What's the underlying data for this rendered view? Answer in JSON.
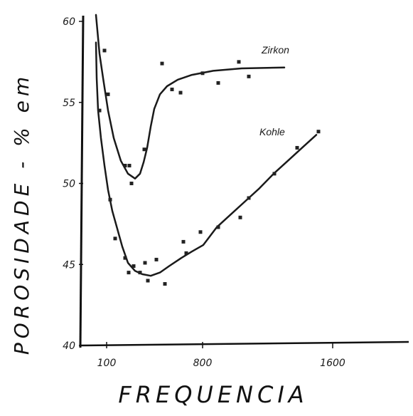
{
  "chart_data": {
    "type": "line",
    "title": "",
    "xlabel": "FREQUENCIA",
    "ylabel": "POROSIDADE - % em",
    "x_ticks": [
      "100",
      "800",
      "1600"
    ],
    "y_ticks": [
      "40",
      "45",
      "50",
      "55",
      "60"
    ],
    "ylim": [
      40,
      60
    ],
    "legend": "none",
    "grid": false,
    "series": [
      {
        "name": "Zirkon",
        "color": "#1a1a1a",
        "curve": [
          [
            135,
            60.4
          ],
          [
            140,
            58
          ],
          [
            145,
            56.5
          ],
          [
            152,
            54.5
          ],
          [
            160,
            52.8
          ],
          [
            170,
            51.4
          ],
          [
            180,
            50.6
          ],
          [
            190,
            50.3
          ],
          [
            197,
            50.6
          ],
          [
            202,
            51.3
          ],
          [
            207,
            52.2
          ],
          [
            212,
            53.5
          ],
          [
            217,
            54.6
          ],
          [
            225,
            55.5
          ],
          [
            235,
            56.0
          ],
          [
            250,
            56.4
          ],
          [
            270,
            56.7
          ],
          [
            300,
            56.95
          ],
          [
            340,
            57.1
          ],
          [
            400,
            57.15
          ]
        ],
        "points": [
          [
            147,
            58.2
          ],
          [
            152,
            55.5
          ],
          [
            176,
            51.1
          ],
          [
            182,
            51.1
          ],
          [
            185,
            50.0
          ],
          [
            203,
            52.1
          ],
          [
            228,
            57.4
          ],
          [
            242,
            55.8
          ],
          [
            254,
            55.6
          ],
          [
            285,
            56.8
          ],
          [
            307,
            56.2
          ],
          [
            336,
            57.5
          ],
          [
            350,
            56.6
          ]
        ]
      },
      {
        "name": "Kohle",
        "color": "#1a1a1a",
        "curve": [
          [
            135,
            58.7
          ],
          [
            136,
            56.5
          ],
          [
            138,
            54.5
          ],
          [
            142,
            52.8
          ],
          [
            147,
            51.1
          ],
          [
            152,
            49.6
          ],
          [
            158,
            48.3
          ],
          [
            165,
            47.2
          ],
          [
            172,
            46.1
          ],
          [
            180,
            45.1
          ],
          [
            190,
            44.6
          ],
          [
            200,
            44.4
          ],
          [
            212,
            44.3
          ],
          [
            225,
            44.5
          ],
          [
            238,
            44.9
          ],
          [
            255,
            45.4
          ],
          [
            270,
            45.8
          ],
          [
            286,
            46.2
          ],
          [
            305,
            47.3
          ],
          [
            325,
            48.1
          ],
          [
            345,
            48.9
          ],
          [
            365,
            49.7
          ],
          [
            385,
            50.6
          ],
          [
            405,
            51.4
          ],
          [
            425,
            52.2
          ],
          [
            445,
            53.0
          ]
        ],
        "points": [
          [
            140,
            54.5
          ],
          [
            155,
            49.0
          ],
          [
            162,
            46.6
          ],
          [
            176,
            45.4
          ],
          [
            181,
            44.5
          ],
          [
            188,
            44.9
          ],
          [
            197,
            44.5
          ],
          [
            204,
            45.1
          ],
          [
            208,
            44.0
          ],
          [
            220,
            45.3
          ],
          [
            232,
            43.8
          ],
          [
            258,
            46.4
          ],
          [
            262,
            45.7
          ],
          [
            282,
            47.0
          ],
          [
            307,
            47.3
          ],
          [
            338,
            47.9
          ],
          [
            350,
            49.1
          ],
          [
            386,
            50.6
          ],
          [
            418,
            52.2
          ],
          [
            448,
            53.2
          ]
        ]
      }
    ]
  }
}
